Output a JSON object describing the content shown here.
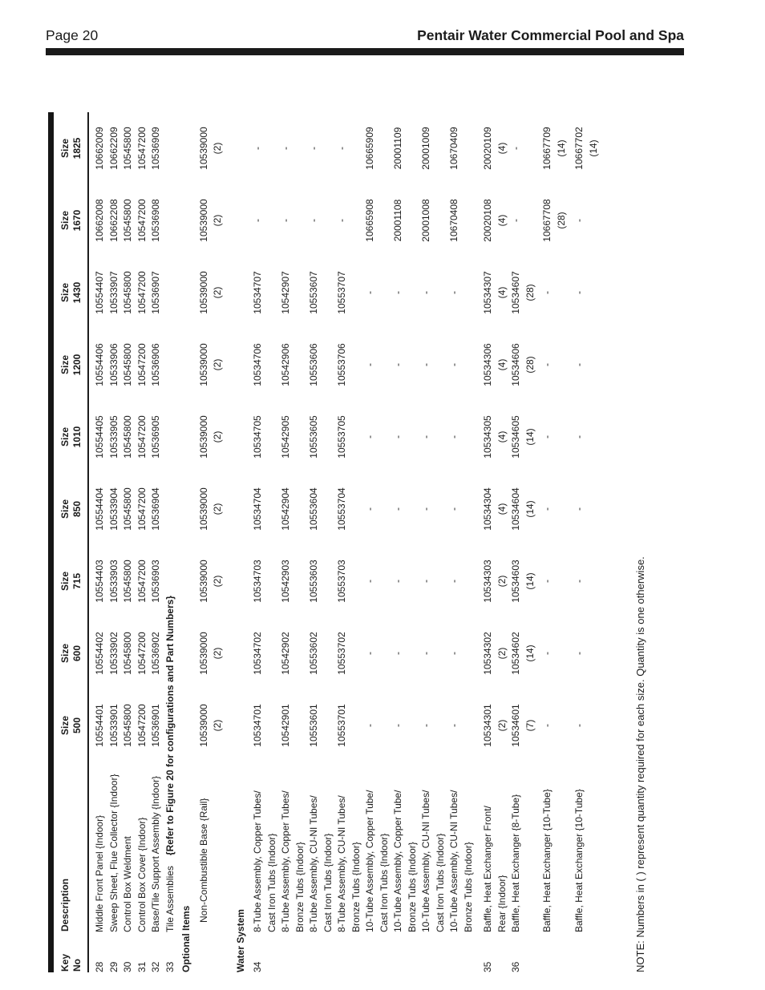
{
  "page": {
    "number_label": "Page 20",
    "title": "Pentair Water Commercial Pool and Spa"
  },
  "note": "NOTE: Numbers in ( )  represent quantity required for each size. Quantity is one otherwise.",
  "colors": {
    "ink": "#1c1c1c",
    "rule": "#1a1a1a",
    "background": "#ffffff"
  },
  "table": {
    "columns": [
      "Key\nNo",
      "Description",
      "Size\n500",
      "Size\n600",
      "Size\n715",
      "Size\n850",
      "Size\n1010",
      "Size\n1200",
      "Size\n1430",
      "Size\n1670",
      "Size\n1825"
    ],
    "rows": [
      {
        "type": "part",
        "key": "28",
        "desc": [
          "Middle Front Panel {Indoor}"
        ],
        "values": [
          "10554401",
          "10554402",
          "10554403",
          "10554404",
          "10554405",
          "10554406",
          "10554407",
          "10662008",
          "10662009"
        ]
      },
      {
        "type": "part",
        "key": "29",
        "desc": [
          "Sweep Sheet, Flue Collector {Indoor}"
        ],
        "values": [
          "10533901",
          "10533902",
          "10533903",
          "10533904",
          "10533905",
          "10533906",
          "10533907",
          "10662208",
          "10662209"
        ]
      },
      {
        "type": "part",
        "key": "30",
        "desc": [
          "Control Box Weldment"
        ],
        "values": [
          "10545800",
          "10545800",
          "10545800",
          "10545800",
          "10545800",
          "10545800",
          "10545800",
          "10545800",
          "10545800"
        ]
      },
      {
        "type": "part",
        "key": "31",
        "desc": [
          "Control Box Cover {Indoor}"
        ],
        "values": [
          "10547200",
          "10547200",
          "10547200",
          "10547200",
          "10547200",
          "10547200",
          "10547200",
          "10547200",
          "10547200"
        ]
      },
      {
        "type": "part",
        "key": "32",
        "desc": [
          "Base/Tile Support Assembly {Indoor}"
        ],
        "values": [
          "10536901",
          "10536902",
          "10536903",
          "10536904",
          "10536905",
          "10536906",
          "10536907",
          "10536908",
          "10536909"
        ]
      },
      {
        "type": "part",
        "key": "33",
        "desc": [
          "Tile Assemblies"
        ],
        "note": "{Refer to Figure 20 for configurations and Part Numbers}"
      },
      {
        "type": "section",
        "label": "Optional Items",
        "gap": 3
      },
      {
        "type": "part",
        "key": "",
        "indent": true,
        "gap": 4,
        "desc": [
          "Non-Combustible Base {Rail}"
        ],
        "values": [
          "10539000\n(2)",
          "10539000\n(2)",
          "10539000\n(2)",
          "10539000\n(2)",
          "10539000\n(2)",
          "10539000\n(2)",
          "10539000\n(2)",
          "10539000\n(2)",
          "10539000\n(2)"
        ]
      },
      {
        "type": "section",
        "label": "Water System",
        "gap": 11
      },
      {
        "type": "part",
        "key": "34",
        "gap": 4,
        "desc": [
          "8-Tube Assembly, Copper Tubes/",
          "Cast Iron Tubs {Indoor}"
        ],
        "values": [
          "10534701",
          "10534702",
          "10534703",
          "10534704",
          "10534705",
          "10534706",
          "10534707",
          "-",
          "-"
        ]
      },
      {
        "type": "part",
        "key": "",
        "desc": [
          "8-Tube Assembly, Copper Tubes/",
          "Bronze Tubs {Indoor}"
        ],
        "values": [
          "10542901",
          "10542902",
          "10542903",
          "10542904",
          "10542905",
          "10542906",
          "10542907",
          "-",
          "-"
        ]
      },
      {
        "type": "part",
        "key": "",
        "desc": [
          "8-Tube Assembly, CU-NI Tubes/",
          "Cast Iron Tubs {Indoor}"
        ],
        "values": [
          "10553601",
          "10553602",
          "10553603",
          "10553604",
          "10553605",
          "10553606",
          "10553607",
          "-",
          "-"
        ]
      },
      {
        "type": "part",
        "key": "",
        "desc": [
          "8-Tube Assembly, CU-NI Tubes/",
          "Bronze Tubs {Indoor}"
        ],
        "values": [
          "10553701",
          "10553702",
          "10553703",
          "10553704",
          "10553705",
          "10553706",
          "10553707",
          "-",
          "-"
        ]
      },
      {
        "type": "part",
        "key": "",
        "desc": [
          "10-Tube Assembly, Copper Tube/",
          "Cast Iron Tubs {Indoor}"
        ],
        "values": [
          "-",
          "-",
          "-",
          "-",
          "-",
          "-",
          "-",
          "10665908",
          "10665909"
        ]
      },
      {
        "type": "part",
        "key": "",
        "desc": [
          "10-Tube Assembly, Copper Tube/",
          "Bronze Tubs {Indoor}"
        ],
        "values": [
          "-",
          "-",
          "-",
          "-",
          "-",
          "-",
          "-",
          "20001108",
          "20001109"
        ]
      },
      {
        "type": "part",
        "key": "",
        "desc": [
          "10-Tube Assembly, CU-NI Tubes/",
          "Cast Iron Tubs {Indoor}"
        ],
        "values": [
          "-",
          "-",
          "-",
          "-",
          "-",
          "-",
          "-",
          "20001008",
          "20001009"
        ]
      },
      {
        "type": "part",
        "key": "",
        "desc": [
          "10-Tube Assembly, CU-NI Tubes/",
          "Bronze Tubs {Indoor}"
        ],
        "values": [
          "-",
          "-",
          "-",
          "-",
          "-",
          "-",
          "-",
          "10670408",
          "10670409"
        ]
      },
      {
        "type": "part",
        "key": "35",
        "gap": 7,
        "desc": [
          "Baffle, Heat Exchanger Front/",
          "Rear {Indoor}"
        ],
        "values": [
          "10534301\n(2)",
          "10534302\n(2)",
          "10534303\n(2)",
          "10534304\n(4)",
          "10534305\n(4)",
          "10534306\n(4)",
          "10534307\n(4)",
          "20020108\n(4)",
          "20020109\n(4)"
        ]
      },
      {
        "type": "part",
        "key": "36",
        "desc": [
          "Baffle, Heat Exchanger {8-Tube}"
        ],
        "values": [
          "10534601\n(7)",
          "10534602\n(14)",
          "10534603\n(14)",
          "10534604\n(14)",
          "10534605\n(14)",
          "10534606\n(28)",
          "10534607\n(28)",
          "-",
          "-"
        ]
      },
      {
        "type": "part",
        "key": "",
        "gap": 4,
        "desc": [
          "Baffle, Heat Exchanger {10-Tube}"
        ],
        "values": [
          "-",
          "-",
          "-",
          "-",
          "-",
          "-",
          "-",
          "10667708\n(28)",
          "10667709\n(14)"
        ]
      },
      {
        "type": "part",
        "key": "",
        "gap": 5,
        "desc": [
          "Baffle, Heat Exchanger {10-Tube}"
        ],
        "values": [
          "-",
          "-",
          "-",
          "-",
          "-",
          "-",
          "-",
          "-",
          "10667702\n(14)"
        ]
      }
    ]
  }
}
